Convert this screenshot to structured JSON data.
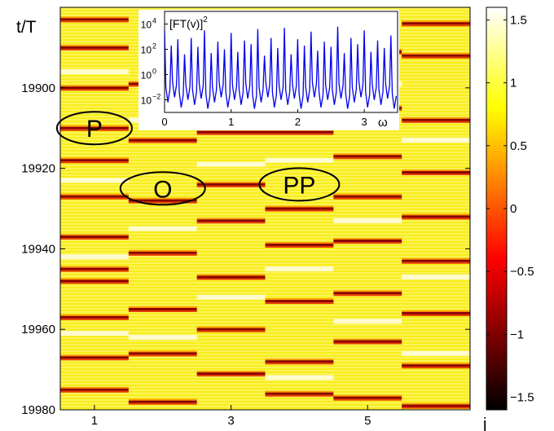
{
  "chart_data": [
    {
      "type": "heatmap",
      "xlabel": "j",
      "ylabel": "t/T",
      "x_tick_labels": [
        "1",
        "3",
        "5"
      ],
      "x_tick_values": [
        1,
        3,
        5
      ],
      "columns": [
        1,
        2,
        3,
        4,
        5,
        6
      ],
      "xlim": [
        0.5,
        6.5
      ],
      "y_tick_labels": [
        "19900",
        "19920",
        "19940",
        "19960",
        "19980"
      ],
      "y_tick_values": [
        19900,
        19920,
        19940,
        19960,
        19980
      ],
      "ylim": [
        19880,
        19980
      ],
      "y_inverted": true,
      "colorbar": {
        "tick_labels": [
          "1.5",
          "1",
          "0.5",
          "0",
          "−0.5",
          "−1",
          "−1.5"
        ],
        "tick_values": [
          1.5,
          1,
          0.5,
          0,
          -0.5,
          -1,
          -1.5
        ],
        "range": [
          -1.6,
          1.6
        ],
        "colormap": "hot"
      },
      "dark_bands": [
        [
          19883,
          19890,
          19900,
          19910,
          19918,
          19927,
          19937,
          19945,
          19948,
          19957,
          19967,
          19975
        ],
        [
          19899,
          19913,
          19928,
          19941,
          19955,
          19966,
          19978
        ],
        [
          19882,
          19897,
          19911,
          19924,
          19933,
          19947,
          19960,
          19971
        ],
        [
          19901,
          19911,
          19930,
          19939,
          19953,
          19968,
          19976
        ],
        [
          19891,
          19905,
          19917,
          19927,
          19938,
          19951,
          19963,
          19977
        ],
        [
          19884,
          19892,
          19908,
          19921,
          19932,
          19943,
          19956,
          19969,
          19979
        ]
      ],
      "light_bands": [
        [
          19896,
          19923,
          19942,
          19961
        ],
        [
          19908,
          19935,
          19962
        ],
        [
          19890,
          19919,
          19952
        ],
        [
          19918,
          19945,
          19972
        ],
        [
          19899,
          19933,
          19958
        ],
        [
          19913,
          19947,
          19966
        ]
      ],
      "regions": [
        {
          "label": "P",
          "x": 1,
          "y": 19910
        },
        {
          "label": "O",
          "x": 2,
          "y": 19925
        },
        {
          "label": "PP",
          "x": 4,
          "y": 19924
        }
      ]
    },
    {
      "type": "line",
      "title": "[FT(v)]",
      "title_superscript": "2",
      "xlabel": "ω",
      "x_tick_labels": [
        "0",
        "1",
        "2",
        "3"
      ],
      "x_tick_values": [
        0,
        1,
        2,
        3
      ],
      "xlim": [
        0,
        3.5
      ],
      "y_scale": "log",
      "y_tick_labels": [
        {
          "base": "10",
          "exp": "4"
        },
        {
          "base": "10",
          "exp": "2"
        },
        {
          "base": "10",
          "exp": "0"
        },
        {
          "base": "10",
          "exp": "−2"
        }
      ],
      "y_tick_values": [
        10000,
        100,
        1,
        0.01
      ],
      "ylim": [
        0.001,
        100000
      ],
      "line_color": "#0000ee",
      "peak_spacing": 0.1,
      "peaks_log10": [
        3.6,
        2.3,
        2.8,
        1.6,
        2.9,
        2.2,
        3.5,
        1.7,
        2.6,
        2.0,
        3.3,
        1.8,
        2.7,
        2.4,
        3.6,
        1.5,
        2.9,
        2.1,
        3.7,
        1.6,
        2.8,
        2.3,
        3.4,
        1.9,
        2.6,
        2.2,
        3.8,
        1.7,
        2.9,
        2.4,
        3.5,
        1.8,
        2.7,
        2.1,
        3.1
      ]
    }
  ]
}
